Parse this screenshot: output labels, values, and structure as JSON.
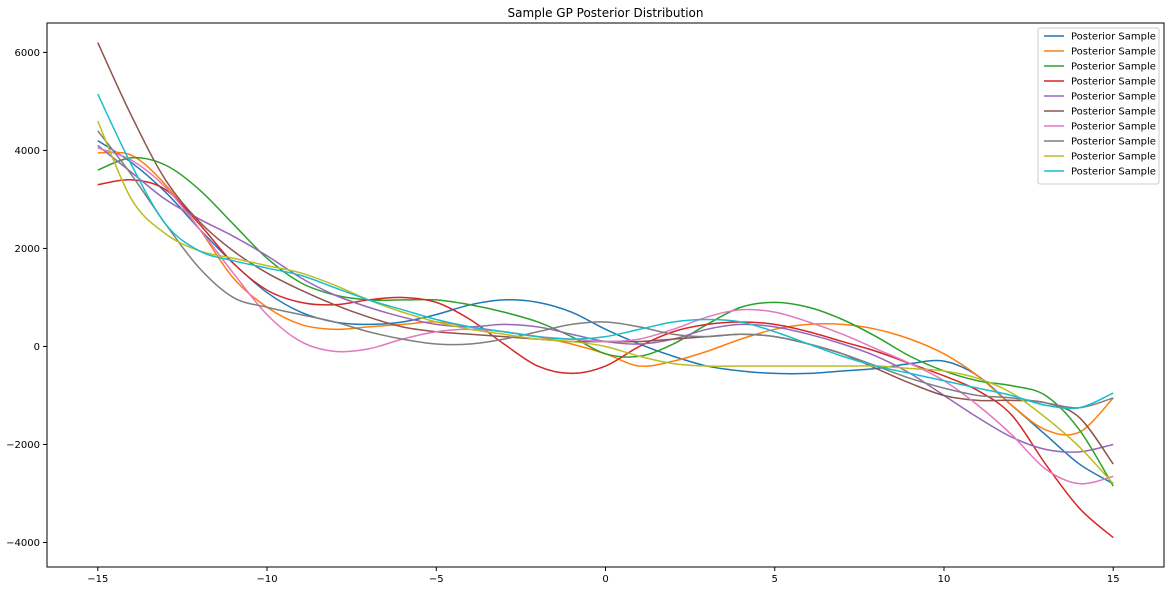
{
  "chart_data": {
    "type": "line",
    "title": "Sample GP Posterior Distribution",
    "xlabel": "",
    "ylabel": "",
    "xlim": [
      -16.5,
      16.5
    ],
    "ylim": [
      -4500,
      6600
    ],
    "xticks": [
      -15,
      -10,
      -5,
      0,
      5,
      10,
      15
    ],
    "xtick_labels": [
      "−15",
      "−10",
      "−5",
      "0",
      "5",
      "10",
      "15"
    ],
    "yticks": [
      -4000,
      -2000,
      0,
      2000,
      4000,
      6000
    ],
    "ytick_labels": [
      "−4000",
      "−2000",
      "0",
      "2000",
      "4000",
      "6000"
    ],
    "grid": false,
    "legend_position": "top-right",
    "series": [
      {
        "name": "Posterior Sample",
        "color": "#1f77b4",
        "x": [
          -15,
          -14,
          -13,
          -12,
          -11,
          -10,
          -9,
          -8,
          -7,
          -6,
          -5,
          -4,
          -3,
          -2,
          -1,
          0,
          1,
          2,
          3,
          4,
          5,
          6,
          7,
          8,
          9,
          10,
          11,
          12,
          13,
          14,
          15
        ],
        "y": [
          4200,
          3750,
          3150,
          2400,
          1700,
          1100,
          700,
          500,
          450,
          500,
          650,
          850,
          950,
          900,
          700,
          350,
          50,
          -200,
          -400,
          -500,
          -550,
          -550,
          -500,
          -450,
          -350,
          -300,
          -600,
          -1200,
          -1800,
          -2400,
          -2800
        ]
      },
      {
        "name": "Posterior Sample",
        "color": "#ff7f0e",
        "x": [
          -15,
          -14,
          -13,
          -12,
          -11,
          -10,
          -9,
          -8,
          -7,
          -6,
          -5,
          -4,
          -3,
          -2,
          -1,
          0,
          1,
          2,
          3,
          4,
          5,
          6,
          7,
          8,
          9,
          10,
          11,
          12,
          13,
          14,
          15
        ],
        "y": [
          3950,
          3900,
          3300,
          2400,
          1400,
          800,
          450,
          350,
          400,
          450,
          500,
          400,
          300,
          200,
          50,
          -150,
          -400,
          -300,
          -100,
          150,
          350,
          450,
          450,
          350,
          150,
          -150,
          -600,
          -1200,
          -1700,
          -1750,
          -1050
        ]
      },
      {
        "name": "Posterior Sample",
        "color": "#2ca02c",
        "x": [
          -15,
          -14,
          -13,
          -12,
          -11,
          -10,
          -9,
          -8,
          -7,
          -6,
          -5,
          -4,
          -3,
          -2,
          -1,
          0,
          1,
          2,
          3,
          4,
          5,
          6,
          7,
          8,
          9,
          10,
          11,
          12,
          13,
          14,
          15
        ],
        "y": [
          3600,
          3850,
          3700,
          3200,
          2500,
          1800,
          1300,
          1050,
          950,
          950,
          950,
          850,
          700,
          500,
          200,
          -150,
          -200,
          50,
          450,
          800,
          900,
          800,
          550,
          200,
          -200,
          -500,
          -700,
          -800,
          -1000,
          -1700,
          -2850
        ]
      },
      {
        "name": "Posterior Sample",
        "color": "#d62728",
        "x": [
          -15,
          -14,
          -13,
          -12,
          -11,
          -10,
          -9,
          -8,
          -7,
          -6,
          -5,
          -4,
          -3,
          -2,
          -1,
          0,
          1,
          2,
          3,
          4,
          5,
          6,
          7,
          8,
          9,
          10,
          11,
          12,
          13,
          14,
          15
        ],
        "y": [
          3300,
          3400,
          3200,
          2500,
          1700,
          1150,
          900,
          850,
          950,
          1000,
          900,
          550,
          50,
          -400,
          -550,
          -400,
          0,
          300,
          450,
          500,
          450,
          300,
          100,
          -100,
          -350,
          -600,
          -900,
          -1400,
          -2400,
          -3300,
          -3900
        ]
      },
      {
        "name": "Posterior Sample",
        "color": "#9467bd",
        "x": [
          -15,
          -14,
          -13,
          -12,
          -11,
          -10,
          -9,
          -8,
          -7,
          -6,
          -5,
          -4,
          -3,
          -2,
          -1,
          0,
          1,
          2,
          3,
          4,
          5,
          6,
          7,
          8,
          9,
          10,
          11,
          12,
          13,
          14,
          15
        ],
        "y": [
          4100,
          3550,
          3000,
          2600,
          2250,
          1850,
          1400,
          1050,
          800,
          600,
          450,
          400,
          450,
          400,
          250,
          100,
          50,
          150,
          350,
          450,
          400,
          250,
          50,
          -200,
          -550,
          -1000,
          -1450,
          -1850,
          -2100,
          -2150,
          -2000
        ]
      },
      {
        "name": "Posterior Sample",
        "color": "#8c564b",
        "x": [
          -15,
          -14,
          -13,
          -12,
          -11,
          -10,
          -9,
          -8,
          -7,
          -6,
          -5,
          -4,
          -3,
          -2,
          -1,
          0,
          1,
          2,
          3,
          4,
          5,
          6,
          7,
          8,
          9,
          10,
          11,
          12,
          13,
          14,
          15
        ],
        "y": [
          6200,
          4700,
          3400,
          2550,
          1950,
          1500,
          1150,
          850,
          600,
          400,
          300,
          250,
          200,
          150,
          100,
          100,
          100,
          150,
          200,
          250,
          200,
          50,
          -150,
          -450,
          -750,
          -1000,
          -1100,
          -1100,
          -1150,
          -1450,
          -2400
        ]
      },
      {
        "name": "Posterior Sample",
        "color": "#e377c2",
        "x": [
          -15,
          -14,
          -13,
          -12,
          -11,
          -10,
          -9,
          -8,
          -7,
          -6,
          -5,
          -4,
          -3,
          -2,
          -1,
          0,
          1,
          2,
          3,
          4,
          5,
          6,
          7,
          8,
          9,
          10,
          11,
          12,
          13,
          14,
          15
        ],
        "y": [
          4050,
          3800,
          3250,
          2400,
          1500,
          650,
          100,
          -100,
          -50,
          150,
          300,
          350,
          300,
          200,
          150,
          100,
          150,
          350,
          600,
          750,
          700,
          500,
          250,
          -50,
          -350,
          -700,
          -1200,
          -1800,
          -2500,
          -2800,
          -2650
        ]
      },
      {
        "name": "Posterior Sample",
        "color": "#7f7f7f",
        "x": [
          -15,
          -14,
          -13,
          -12,
          -11,
          -10,
          -9,
          -8,
          -7,
          -6,
          -5,
          -4,
          -3,
          -2,
          -1,
          0,
          1,
          2,
          3,
          4,
          5,
          6,
          7,
          8,
          9,
          10,
          11,
          12,
          13,
          14,
          15
        ],
        "y": [
          4400,
          3500,
          2500,
          1600,
          1000,
          800,
          650,
          500,
          300,
          150,
          50,
          50,
          150,
          300,
          450,
          500,
          400,
          250,
          200,
          250,
          200,
          50,
          -150,
          -400,
          -650,
          -850,
          -1000,
          -1050,
          -1150,
          -1250,
          -1050
        ]
      },
      {
        "name": "Posterior Sample",
        "color": "#bcbd22",
        "x": [
          -15,
          -14,
          -13,
          -12,
          -11,
          -10,
          -9,
          -8,
          -7,
          -6,
          -5,
          -4,
          -3,
          -2,
          -1,
          0,
          1,
          2,
          3,
          4,
          5,
          6,
          7,
          8,
          9,
          10,
          11,
          12,
          13,
          14,
          15
        ],
        "y": [
          4600,
          3000,
          2300,
          1950,
          1800,
          1650,
          1500,
          1250,
          950,
          700,
          500,
          350,
          250,
          150,
          100,
          0,
          -200,
          -350,
          -400,
          -400,
          -400,
          -400,
          -400,
          -400,
          -450,
          -500,
          -650,
          -950,
          -1450,
          -2050,
          -2800
        ]
      },
      {
        "name": "Posterior Sample",
        "color": "#17becf",
        "x": [
          -15,
          -14,
          -13,
          -12,
          -11,
          -10,
          -9,
          -8,
          -7,
          -6,
          -5,
          -4,
          -3,
          -2,
          -1,
          0,
          1,
          2,
          3,
          4,
          5,
          6,
          7,
          8,
          9,
          10,
          11,
          12,
          13,
          14,
          15
        ],
        "y": [
          5150,
          3700,
          2500,
          1950,
          1750,
          1600,
          1450,
          1200,
          950,
          750,
          550,
          400,
          300,
          200,
          150,
          200,
          350,
          500,
          550,
          500,
          300,
          50,
          -200,
          -400,
          -550,
          -700,
          -850,
          -1000,
          -1200,
          -1250,
          -950
        ]
      }
    ]
  }
}
